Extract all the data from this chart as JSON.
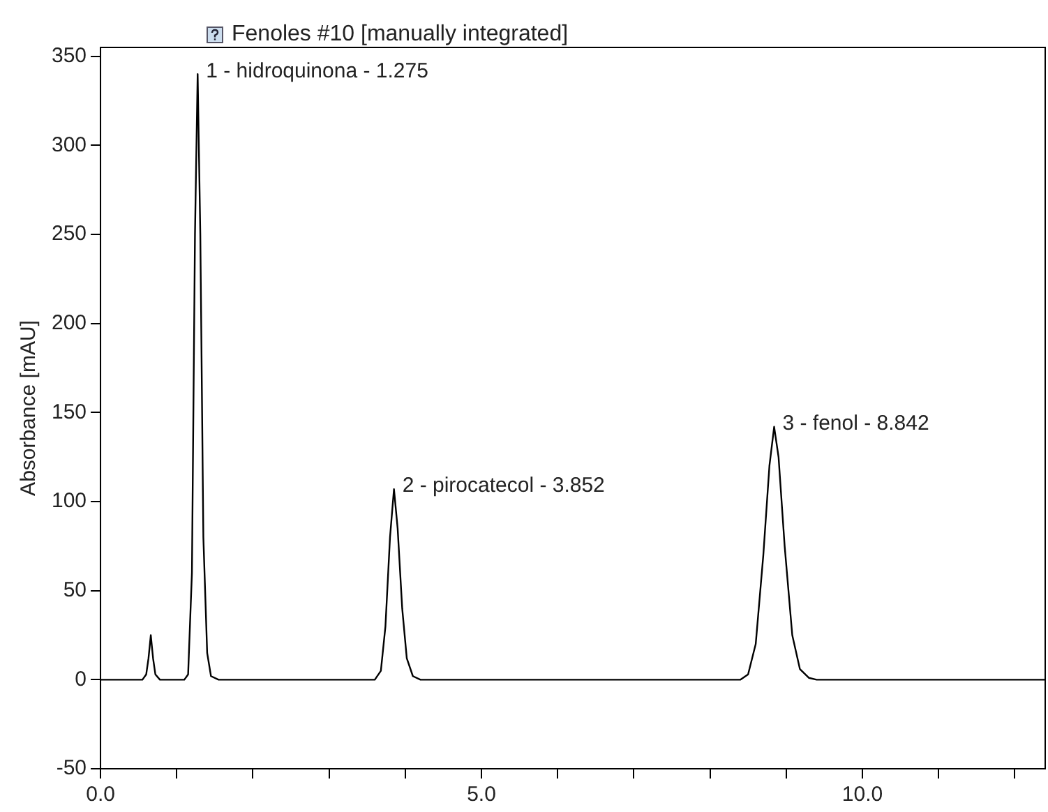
{
  "chart_data": {
    "type": "line",
    "title": "Fenoles #10 [manually integrated]",
    "ylabel": "Absorbance [mAU]",
    "xlim": [
      0,
      12.4
    ],
    "ylim": [
      -50,
      355
    ],
    "xticks": [
      {
        "value": 0,
        "label": "0.0"
      },
      {
        "value": 1,
        "label": null
      },
      {
        "value": 2,
        "label": null
      },
      {
        "value": 3,
        "label": null
      },
      {
        "value": 4,
        "label": null
      },
      {
        "value": 5,
        "label": "5.0"
      },
      {
        "value": 6,
        "label": null
      },
      {
        "value": 7,
        "label": null
      },
      {
        "value": 8,
        "label": null
      },
      {
        "value": 9,
        "label": null
      },
      {
        "value": 10,
        "label": "10.0"
      },
      {
        "value": 11,
        "label": null
      },
      {
        "value": 12,
        "label": null
      }
    ],
    "yticks": [
      -50,
      0,
      50,
      100,
      150,
      200,
      250,
      300,
      350
    ],
    "series": [
      {
        "color": "#000000",
        "x": [
          0,
          0.55,
          0.6,
          0.63,
          0.66,
          0.69,
          0.72,
          0.78,
          1.1,
          1.15,
          1.2,
          1.24,
          1.275,
          1.31,
          1.35,
          1.4,
          1.45,
          1.55,
          3.6,
          3.68,
          3.74,
          3.8,
          3.852,
          3.9,
          3.96,
          4.02,
          4.1,
          4.2,
          8.4,
          8.5,
          8.6,
          8.7,
          8.78,
          8.842,
          8.9,
          8.98,
          9.08,
          9.18,
          9.3,
          9.4,
          12.4
        ],
        "values": [
          0,
          0,
          3,
          12,
          25,
          12,
          3,
          0,
          0,
          3,
          60,
          250,
          340,
          250,
          80,
          15,
          2,
          0,
          0,
          5,
          30,
          80,
          107,
          85,
          40,
          12,
          2,
          0,
          0,
          3,
          20,
          70,
          120,
          142,
          125,
          75,
          25,
          6,
          1,
          0,
          0
        ]
      }
    ],
    "annotations": [
      {
        "text": "1 - hidroquinona - 1.275",
        "x": 1.275,
        "y": 340
      },
      {
        "text": "2 - pirocatecol - 3.852",
        "x": 3.852,
        "y": 107
      },
      {
        "text": "3 - fenol - 8.842",
        "x": 8.842,
        "y": 142
      }
    ],
    "grid": false,
    "legend": false,
    "marker": "none",
    "line_style": "solid"
  }
}
